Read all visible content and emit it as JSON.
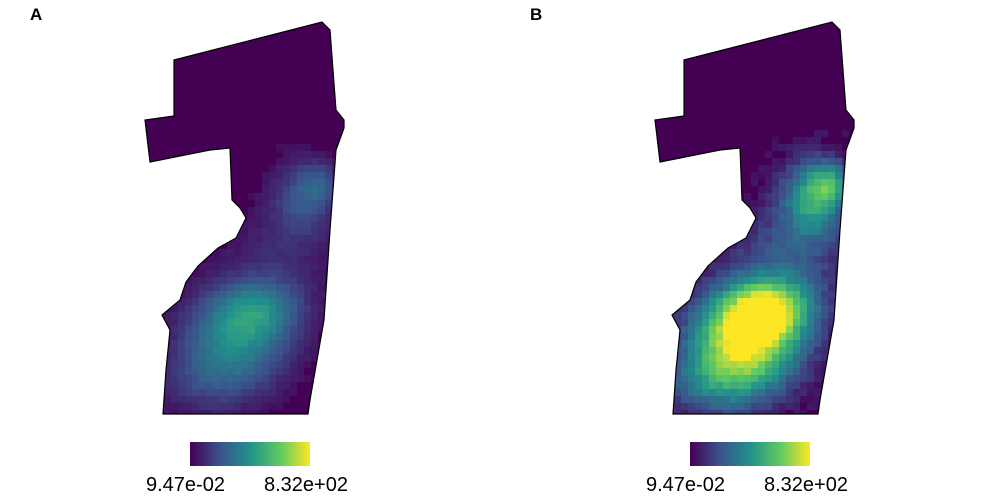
{
  "panels": [
    {
      "label": "A",
      "intensity": 0.45
    },
    {
      "label": "B",
      "intensity": 1.0
    }
  ],
  "legend": {
    "min_label": "9.47e-02",
    "max_label": "8.32e+02",
    "colormap": [
      "#440154",
      "#3b528b",
      "#21918c",
      "#5ec962",
      "#fde725"
    ]
  },
  "colors": {
    "outline": "#000000",
    "background": "#ffffff"
  }
}
